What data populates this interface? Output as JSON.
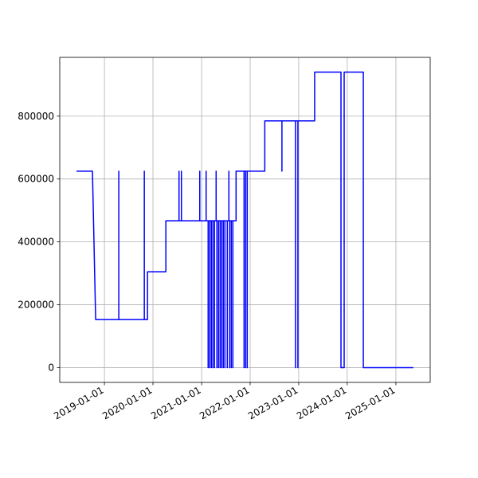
{
  "chart_data": {
    "type": "line",
    "x": [
      "2018-06-05",
      "2018-10-03",
      "2018-10-27",
      "2019-04-19",
      "2019-04-19",
      "2019-04-19",
      "2019-10-28",
      "2019-10-28",
      "2019-10-28",
      "2019-11-21",
      "2019-11-21",
      "2020-04-07",
      "2020-04-07",
      "2020-07-15",
      "2020-07-15",
      "2020-07-15",
      "2020-08-02",
      "2020-08-02",
      "2020-08-02",
      "2020-12-18",
      "2020-12-18",
      "2020-12-18",
      "2021-02-04",
      "2021-02-04",
      "2021-02-04",
      "2021-02-19",
      "2021-02-19",
      "2021-02-19",
      "2021-03-03",
      "2021-03-03",
      "2021-03-03",
      "2021-03-15",
      "2021-03-15",
      "2021-03-15",
      "2021-03-27",
      "2021-03-27",
      "2021-03-27",
      "2021-04-08",
      "2021-04-08",
      "2021-04-08",
      "2021-04-20",
      "2021-04-20",
      "2021-04-20",
      "2021-04-26",
      "2021-04-26",
      "2021-04-26",
      "2021-05-08",
      "2021-05-08",
      "2021-05-08",
      "2021-05-20",
      "2021-05-20",
      "2021-05-20",
      "2021-06-01",
      "2021-06-01",
      "2021-06-01",
      "2021-06-13",
      "2021-06-13",
      "2021-06-13",
      "2021-06-25",
      "2021-06-25",
      "2021-06-25",
      "2021-07-13",
      "2021-07-13",
      "2021-07-13",
      "2021-07-25",
      "2021-07-25",
      "2021-07-25",
      "2021-07-31",
      "2021-07-31",
      "2021-07-31",
      "2021-08-12",
      "2021-08-12",
      "2021-08-12",
      "2021-08-24",
      "2021-08-24",
      "2021-08-24",
      "2021-09-17",
      "2021-09-17",
      "2021-11-16",
      "2021-11-16",
      "2021-11-16",
      "2021-11-28",
      "2021-11-28",
      "2021-11-28",
      "2021-12-10",
      "2021-12-10",
      "2021-12-10",
      "2022-04-21",
      "2022-04-21",
      "2022-08-28",
      "2022-08-28",
      "2022-08-28",
      "2022-12-08",
      "2022-12-08",
      "2022-12-08",
      "2022-12-26",
      "2022-12-26",
      "2022-12-26",
      "2023-05-01",
      "2023-05-01",
      "2023-11-15",
      "2023-11-15",
      "2023-12-09",
      "2023-12-09",
      "2024-05-01",
      "2024-05-01",
      "2025-05-12"
    ],
    "series": [
      {
        "color": "#0000ff",
        "values": [
          625000,
          625000,
          153000,
          153000,
          625000,
          153000,
          153000,
          625000,
          153000,
          153000,
          305000,
          305000,
          467000,
          467000,
          625000,
          467000,
          467000,
          625000,
          467000,
          467000,
          625000,
          467000,
          467000,
          625000,
          467000,
          467000,
          0,
          467000,
          467000,
          0,
          467000,
          467000,
          0,
          467000,
          467000,
          0,
          467000,
          467000,
          0,
          467000,
          467000,
          625000,
          467000,
          467000,
          0,
          467000,
          467000,
          0,
          467000,
          467000,
          0,
          467000,
          467000,
          0,
          467000,
          467000,
          0,
          467000,
          467000,
          0,
          467000,
          467000,
          0,
          467000,
          467000,
          625000,
          467000,
          467000,
          0,
          467000,
          467000,
          0,
          467000,
          467000,
          0,
          467000,
          467000,
          625000,
          625000,
          0,
          625000,
          625000,
          0,
          625000,
          625000,
          0,
          625000,
          625000,
          785000,
          785000,
          625000,
          785000,
          785000,
          0,
          785000,
          785000,
          0,
          785000,
          785000,
          940000,
          940000,
          0,
          0,
          940000,
          940000,
          0,
          0
        ]
      }
    ],
    "xlim": [
      "2018-01-30",
      "2025-09-16"
    ],
    "xticks": [
      "2019-01-01",
      "2020-01-01",
      "2021-01-01",
      "2022-01-01",
      "2023-01-01",
      "2024-01-01",
      "2025-01-01"
    ],
    "ylim": [
      -47000,
      987000
    ],
    "yticks": [
      0,
      200000,
      400000,
      600000,
      800000
    ],
    "grid": true
  }
}
